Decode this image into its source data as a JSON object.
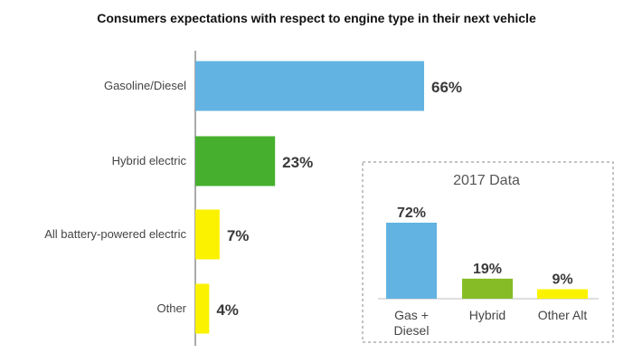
{
  "chart_data": [
    {
      "type": "bar",
      "orientation": "horizontal",
      "title": "Consumers expectations with respect to engine type in their next vehicle",
      "categories": [
        "Gasoline/Diesel",
        "Hybrid electric",
        "All battery-powered electric",
        "Other"
      ],
      "values": [
        66,
        23,
        7,
        4
      ],
      "value_labels": [
        "66%",
        "23%",
        "7%",
        "4%"
      ],
      "colors": [
        "#63b3e2",
        "#46b02e",
        "#fbf200",
        "#fbf200"
      ],
      "unit": "%"
    },
    {
      "type": "bar",
      "orientation": "vertical",
      "title": "2017 Data",
      "categories": [
        [
          "Gas +",
          "Diesel"
        ],
        [
          "Hybrid"
        ],
        [
          "Other Alt"
        ]
      ],
      "values": [
        72,
        19,
        9
      ],
      "value_labels": [
        "72%",
        "19%",
        "9%"
      ],
      "colors": [
        "#63b3e2",
        "#86bd27",
        "#fbf200"
      ],
      "unit": "%"
    }
  ]
}
